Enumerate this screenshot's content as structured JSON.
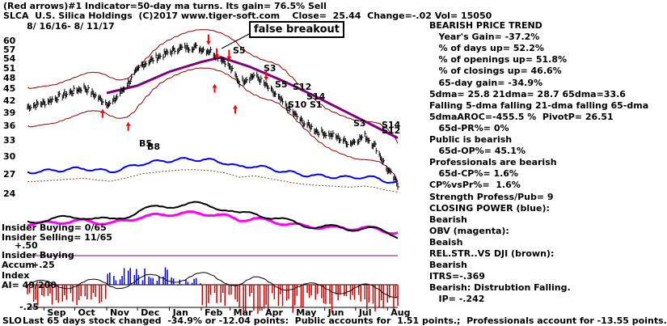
{
  "header": {
    "line1": "(Red arrows)#1 Indicator=50-day ma turns. Its gain= 76.5% Sell",
    "line2": "SLCA  U.S. Silica Holdings  (C)2017 www.tiger-soft.com    Close=  25.44  Change=-.02 Vol= 15050",
    "date_range": "8/ 16/16- 8/ 11/17"
  },
  "callout": "false breakout",
  "signal_labels": [
    "S5",
    "S3",
    "S5",
    "S12",
    "S14",
    "S10",
    "S1",
    "S3",
    "S12",
    "S14",
    "B5",
    "B8"
  ],
  "left_panel": {
    "insider_buying_count": "Insider Buying= 0/65",
    "insider_selling_count": "Insider Selling= 11/65",
    "accum_top": "+.50",
    "insider_buying_label": "Insider Buying",
    "accum_label": "Accum",
    "accum_plus": "+.25",
    "index_label": "Index",
    "ai_label": "AI= 49/200",
    "accum_minus": "-.25"
  },
  "footer": "Last 65 days stock changed  -34.9% or -12.04 points:  Public accounts for  1.51 points.;  Professionals account for -13.55 points.",
  "footer_prefix": "SLO",
  "stats": [
    "BEARISH PRICE TREND",
    "   Year's Gain= -37.2%",
    "   % of days up= 52.2%",
    "   % of openings up= 51.8%",
    "   % of closings up= 46.6%",
    "   65-day gain= -34.9%",
    "5dma= 25.8 21dma= 28.7 65dma=33.6",
    "Falling 5-dma falling 21-dma falling 65-dma",
    "5dmaAROC=-455.5 %  PivotP= 26.51",
    "   65d-PR%= 0%",
    "Public is bearish",
    "   65d-OP%= 45.1%",
    "Professionals are bearish",
    "   65d-CP%= 1.6%",
    "CP%vsPr%=  1.6%",
    "Strength Profess/Pub= 9",
    "CLOSING POWER (blue):",
    "Bearish",
    "OBV (magenta):",
    "Beaish",
    "REL.STR..VS DJI (brown):",
    "Bearish",
    "ITRS=-.369",
    "Bearish: Distrubtion Falling.",
    "   IP= -.242"
  ],
  "colors": {
    "price": "#000000",
    "bands": "#8b0000",
    "ma_65": "#800080",
    "closing_power": "#0000ff",
    "obv": "#ff00ff",
    "rel_strength": "#8b4513",
    "accum_pos": "#0000cc",
    "accum_neg": "#cc0000",
    "signal_red": "#ff0000",
    "stat_blue": "#0000aa",
    "stat_red": "#aa0000"
  },
  "chart_data": {
    "type": "line",
    "title": "SLCA  U.S. Silica Holdings",
    "x_tick_labels": [
      "Sep",
      "Oct",
      "Nov",
      "Dec",
      "Jan",
      "Feb",
      "Mar",
      "Apr",
      "May",
      "Jun",
      "Jul",
      "Aug"
    ],
    "y_tick_labels": [
      "60",
      "57",
      "54",
      "51",
      "48",
      "45",
      "42",
      "39",
      "36",
      "33",
      "30",
      "27",
      "24"
    ],
    "ylim": [
      24,
      60
    ],
    "scale": "log",
    "close": {
      "last": 25.44,
      "change": -0.02,
      "volume": 15050
    },
    "price_path": [
      {
        "date": "2016-08-16",
        "price": 40.5
      },
      {
        "date": "2016-09-01",
        "price": 41.5
      },
      {
        "date": "2016-09-20",
        "price": 43.5
      },
      {
        "date": "2016-10-10",
        "price": 45.5
      },
      {
        "date": "2016-10-25",
        "price": 42.5
      },
      {
        "date": "2016-11-05",
        "price": 41.0
      },
      {
        "date": "2016-11-20",
        "price": 46.0
      },
      {
        "date": "2016-12-05",
        "price": 52.0
      },
      {
        "date": "2016-12-20",
        "price": 54.5
      },
      {
        "date": "2017-01-10",
        "price": 57.5
      },
      {
        "date": "2017-01-25",
        "price": 58.0
      },
      {
        "date": "2017-02-10",
        "price": 56.5
      },
      {
        "date": "2017-02-25",
        "price": 53.0
      },
      {
        "date": "2017-03-10",
        "price": 47.0
      },
      {
        "date": "2017-03-25",
        "price": 49.0
      },
      {
        "date": "2017-04-10",
        "price": 44.5
      },
      {
        "date": "2017-04-25",
        "price": 40.5
      },
      {
        "date": "2017-05-10",
        "price": 37.0
      },
      {
        "date": "2017-05-25",
        "price": 35.0
      },
      {
        "date": "2017-06-10",
        "price": 34.0
      },
      {
        "date": "2017-06-25",
        "price": 32.5
      },
      {
        "date": "2017-07-10",
        "price": 34.0
      },
      {
        "date": "2017-07-20",
        "price": 32.0
      },
      {
        "date": "2017-07-31",
        "price": 28.0
      },
      {
        "date": "2017-08-11",
        "price": 25.44
      }
    ],
    "ma_65_path": [
      {
        "date": "2016-11-01",
        "value": 44.0
      },
      {
        "date": "2016-12-01",
        "value": 46.0
      },
      {
        "date": "2017-01-01",
        "value": 50.0
      },
      {
        "date": "2017-02-01",
        "value": 53.0
      },
      {
        "date": "2017-02-20",
        "value": 54.5
      },
      {
        "date": "2017-03-20",
        "value": 51.5
      },
      {
        "date": "2017-04-20",
        "value": 47.5
      },
      {
        "date": "2017-05-20",
        "value": 43.5
      },
      {
        "date": "2017-06-20",
        "value": 39.5
      },
      {
        "date": "2017-07-20",
        "value": 36.0
      },
      {
        "date": "2017-08-11",
        "value": 33.6
      }
    ],
    "moving_averages": {
      "dma5": 25.8,
      "dma21": 28.7,
      "dma65": 33.6
    }
  }
}
